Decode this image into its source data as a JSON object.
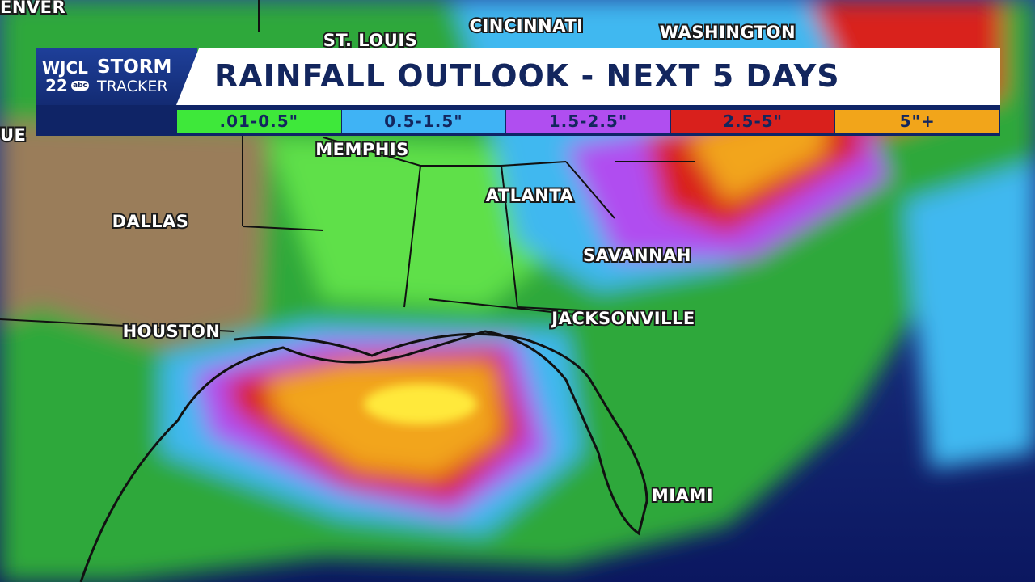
{
  "header": {
    "logo": {
      "station": "WJCL",
      "channel": "22",
      "network": "abc",
      "brand_top": "STORM",
      "brand_bottom": "TRACKER"
    },
    "title": "RAINFALL OUTLOOK - NEXT 5 DAYS"
  },
  "legend": [
    {
      "label": ".01-0.5\"",
      "color": "#3ee83a"
    },
    {
      "label": "0.5-1.5\"",
      "color": "#3fb3f5"
    },
    {
      "label": "1.5-2.5\"",
      "color": "#b04ef0"
    },
    {
      "label": "2.5-5\"",
      "color": "#d9201c"
    },
    {
      "label": "5\"+",
      "color": "#f2a51a"
    }
  ],
  "cities": [
    "ENVER",
    "ST. LOUIS",
    "CINCINNATI",
    "WASHINGTON",
    "UE",
    "MEMPHIS",
    "DALLAS",
    "ATLANTA",
    "SAVANNAH",
    "HOUSTON",
    "JACKSONVILLE",
    "MIAMI"
  ]
}
